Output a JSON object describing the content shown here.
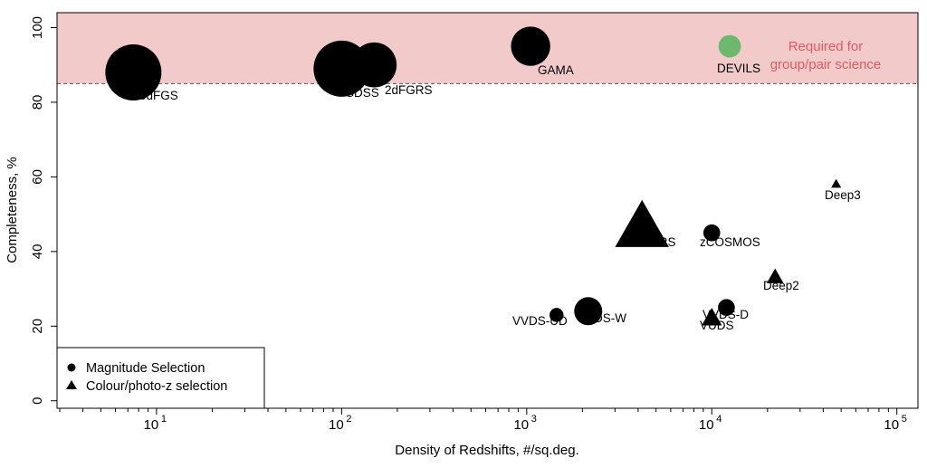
{
  "chart_data": {
    "type": "scatter",
    "xlabel": "Density of Redshifts,  #/sq.deg.",
    "ylabel": "Completeness, %",
    "x_scale": "log",
    "xlim": [
      2.9,
      130000
    ],
    "ylim": [
      -2,
      104
    ],
    "x_ticks": [
      {
        "value": 10,
        "base": "10",
        "exp": "1"
      },
      {
        "value": 100,
        "base": "10",
        "exp": "2"
      },
      {
        "value": 1000,
        "base": "10",
        "exp": "3"
      },
      {
        "value": 10000,
        "base": "10",
        "exp": "4"
      },
      {
        "value": 100000,
        "base": "10",
        "exp": "5"
      }
    ],
    "y_ticks": [
      {
        "value": 0,
        "label": "0"
      },
      {
        "value": 20,
        "label": "20"
      },
      {
        "value": 40,
        "label": "40"
      },
      {
        "value": 60,
        "label": "60"
      },
      {
        "value": 80,
        "label": "80"
      },
      {
        "value": 100,
        "label": "100"
      }
    ],
    "grid": false,
    "band": {
      "y_min": 85,
      "y_max": 104,
      "color": "#f2caca",
      "line_color": "#555555",
      "label_lines": [
        "Required for",
        "group/pair science"
      ],
      "label_color": "#e05a64"
    },
    "points": [
      {
        "name": "6dFGS",
        "x": 7.5,
        "y": 88,
        "size": 10,
        "marker": "circle",
        "color": "#000000",
        "label_dx": 1.05,
        "label_dy": -1.3
      },
      {
        "name": "SDSS",
        "x": 100,
        "y": 89,
        "size": 10,
        "marker": "circle",
        "color": "#000000",
        "label_dx": 0.98,
        "label_dy": -1.3
      },
      {
        "name": "2dFGRS",
        "x": 150,
        "y": 90,
        "size": 8,
        "marker": "circle",
        "color": "#000000",
        "label_dx": 0.92,
        "label_dy": -1.3
      },
      {
        "name": "GAMA",
        "x": 1050,
        "y": 95,
        "size": 7,
        "marker": "circle",
        "color": "#000000",
        "label_dx": 0.95,
        "label_dy": -1.3
      },
      {
        "name": "DEVILS",
        "x": 12500,
        "y": 95,
        "size": 4,
        "marker": "circle",
        "color": "#6db86d",
        "label_dx": 0.4,
        "label_dy": -1.0
      },
      {
        "name": "VIPERS",
        "x": 4200,
        "y": 46,
        "size": 8,
        "marker": "triangle",
        "color": "#000000",
        "label_dx": 0.0,
        "label_dy": -0.6
      },
      {
        "name": "zCOSMOS",
        "x": 10000,
        "y": 45,
        "size": 3,
        "marker": "circle",
        "color": "#000000",
        "label_dx": 0.0,
        "label_dy": -1.0
      },
      {
        "name": "Deep3",
        "x": 47000,
        "y": 58,
        "size": 1.5,
        "marker": "triangle",
        "color": "#000000",
        "label_dx": 0.0,
        "label_dy": -1.0
      },
      {
        "name": "Deep2",
        "x": 22000,
        "y": 33,
        "size": 2.5,
        "marker": "triangle",
        "color": "#000000",
        "label_dx": 0.0,
        "label_dy": -1.0
      },
      {
        "name": "VVDS-UD",
        "x": 1450,
        "y": 23,
        "size": 2.5,
        "marker": "circle",
        "color": "#000000",
        "label_dx": 0.0,
        "label_dy": -1.0
      },
      {
        "name": "VVDS-W",
        "x": 2150,
        "y": 24,
        "size": 5,
        "marker": "circle",
        "color": "#000000",
        "label_dx": 0.0,
        "label_dy": -1.0
      },
      {
        "name": "VVDS-D",
        "x": 12000,
        "y": 25,
        "size": 3,
        "marker": "circle",
        "color": "#000000",
        "label_dx": 0.0,
        "label_dy": -1.0
      },
      {
        "name": "VUDS",
        "x": 10000,
        "y": 22,
        "size": 3,
        "marker": "triangle",
        "color": "#000000",
        "label_dx": 0.0,
        "label_dy": -1.0
      }
    ],
    "legend": {
      "position": "bottom-left",
      "entries": [
        {
          "marker": "circle",
          "label": "Magnitude Selection"
        },
        {
          "marker": "triangle",
          "label": "Colour/photo-z selection"
        }
      ]
    }
  }
}
